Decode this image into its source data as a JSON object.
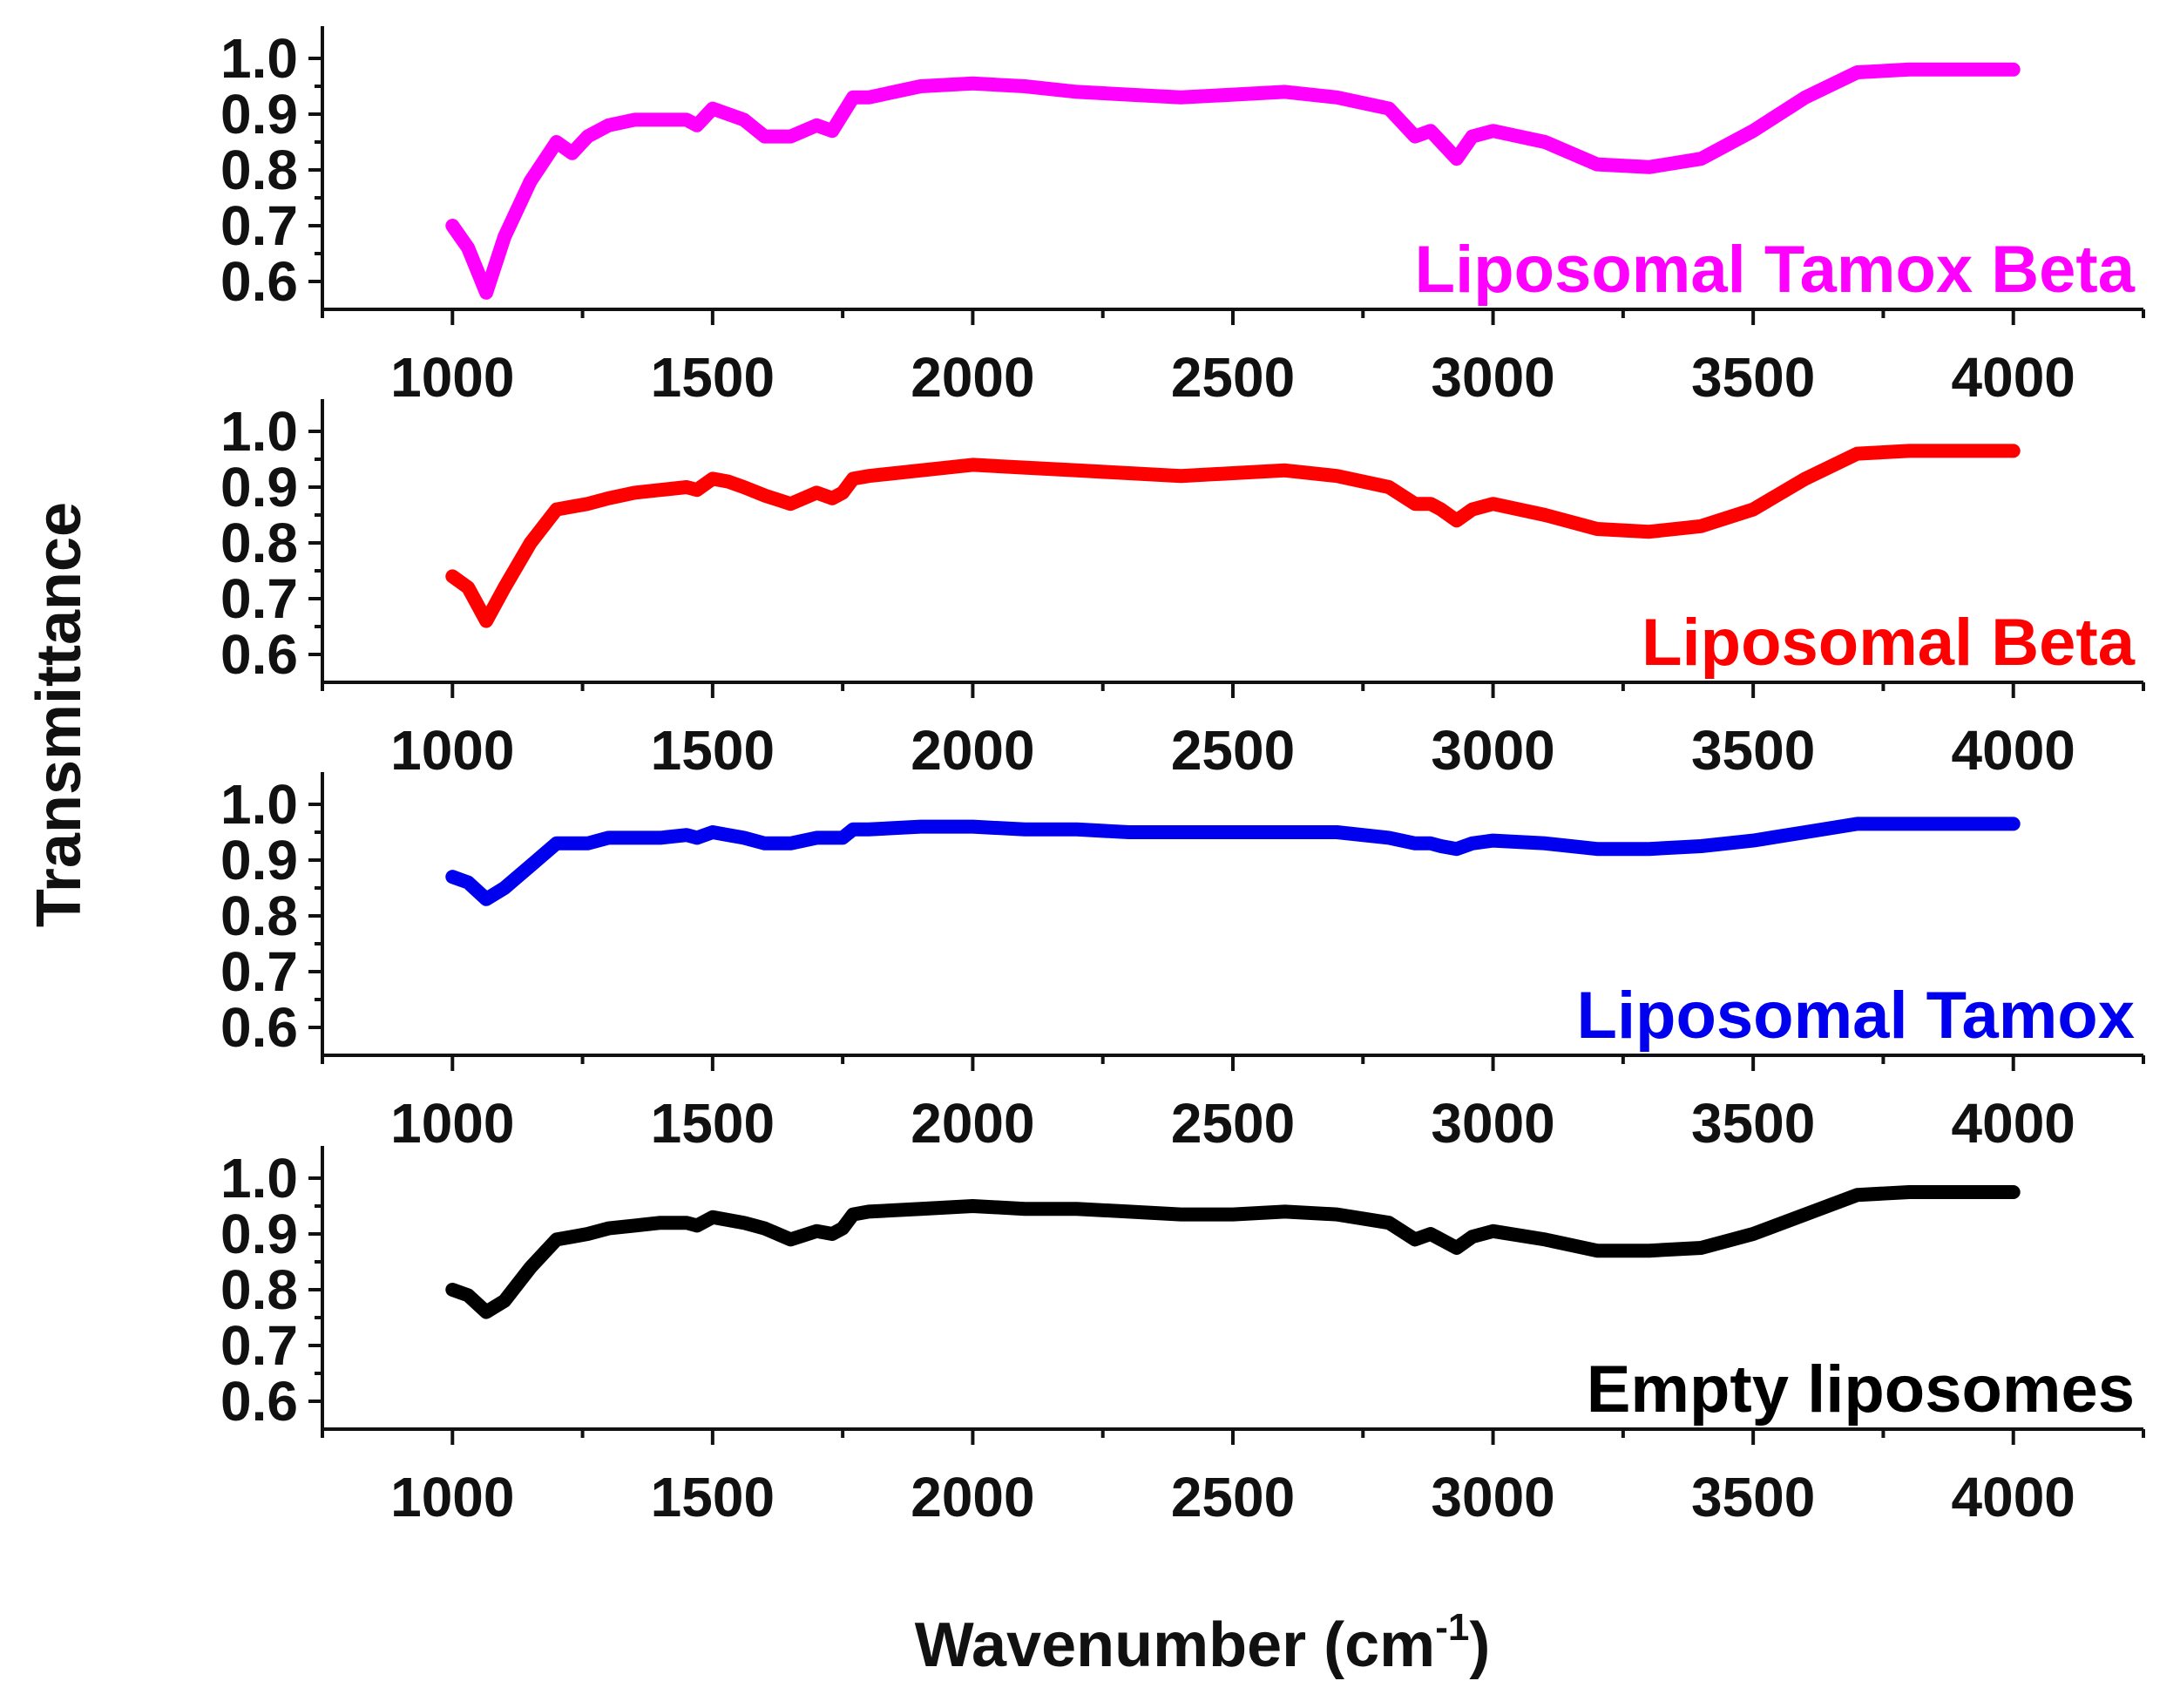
{
  "chart_data": {
    "type": "line",
    "layout": "stacked-panels",
    "xlabel_text": "Wavenumber (cm",
    "xlabel_sup": "-1",
    "xlabel_close": ")",
    "ylabel": "Transmittance",
    "xlim": [
      750,
      4250
    ],
    "ylim": [
      0.55,
      1.05
    ],
    "x_ticks": [
      1000,
      1500,
      2000,
      2500,
      3000,
      3500,
      4000
    ],
    "x_tick_labels": [
      "1000",
      "1500",
      "2000",
      "2500",
      "3000",
      "3500",
      "4000"
    ],
    "y_ticks": [
      0.6,
      0.7,
      0.8,
      0.9,
      1.0
    ],
    "y_tick_labels": [
      "0.6",
      "0.7",
      "0.8",
      "0.9",
      "1.0"
    ],
    "series": [
      {
        "name": "Liposomal Tamox Beta",
        "color": "#ff00ff",
        "x": [
          1000,
          1030,
          1065,
          1100,
          1150,
          1200,
          1230,
          1260,
          1300,
          1350,
          1400,
          1450,
          1470,
          1500,
          1530,
          1560,
          1600,
          1650,
          1700,
          1730,
          1750,
          1770,
          1800,
          1900,
          2000,
          2100,
          2200,
          2300,
          2400,
          2500,
          2600,
          2700,
          2800,
          2850,
          2880,
          2900,
          2930,
          2960,
          3000,
          3100,
          3200,
          3300,
          3400,
          3500,
          3600,
          3700,
          3800,
          3900,
          4000
        ],
        "y": [
          0.7,
          0.66,
          0.58,
          0.68,
          0.78,
          0.85,
          0.83,
          0.86,
          0.88,
          0.89,
          0.89,
          0.89,
          0.88,
          0.91,
          0.9,
          0.89,
          0.86,
          0.86,
          0.88,
          0.87,
          0.9,
          0.93,
          0.93,
          0.95,
          0.955,
          0.95,
          0.94,
          0.935,
          0.93,
          0.935,
          0.94,
          0.93,
          0.91,
          0.86,
          0.87,
          0.85,
          0.82,
          0.86,
          0.87,
          0.85,
          0.81,
          0.805,
          0.82,
          0.87,
          0.93,
          0.975,
          0.98,
          0.98,
          0.98
        ]
      },
      {
        "name": "Liposomal Beta",
        "color": "#ff0000",
        "x": [
          1000,
          1030,
          1065,
          1100,
          1150,
          1200,
          1230,
          1260,
          1300,
          1350,
          1400,
          1450,
          1470,
          1500,
          1530,
          1560,
          1600,
          1650,
          1700,
          1730,
          1750,
          1770,
          1800,
          1900,
          2000,
          2100,
          2200,
          2300,
          2400,
          2500,
          2600,
          2700,
          2800,
          2850,
          2880,
          2900,
          2930,
          2960,
          3000,
          3100,
          3200,
          3300,
          3400,
          3500,
          3600,
          3700,
          3800,
          3900,
          4000
        ],
        "y": [
          0.74,
          0.72,
          0.66,
          0.72,
          0.8,
          0.86,
          0.865,
          0.87,
          0.88,
          0.89,
          0.895,
          0.9,
          0.895,
          0.915,
          0.91,
          0.9,
          0.885,
          0.87,
          0.89,
          0.88,
          0.89,
          0.915,
          0.92,
          0.93,
          0.94,
          0.935,
          0.93,
          0.925,
          0.92,
          0.925,
          0.93,
          0.92,
          0.9,
          0.87,
          0.87,
          0.86,
          0.84,
          0.86,
          0.87,
          0.85,
          0.825,
          0.82,
          0.83,
          0.86,
          0.915,
          0.96,
          0.965,
          0.965,
          0.965
        ]
      },
      {
        "name": "Liposomal Tamox",
        "color": "#0000ee",
        "x": [
          1000,
          1030,
          1065,
          1100,
          1150,
          1200,
          1230,
          1260,
          1300,
          1350,
          1400,
          1450,
          1470,
          1500,
          1530,
          1560,
          1600,
          1650,
          1700,
          1730,
          1750,
          1770,
          1800,
          1900,
          2000,
          2100,
          2200,
          2300,
          2400,
          2500,
          2600,
          2700,
          2800,
          2850,
          2880,
          2900,
          2930,
          2960,
          3000,
          3100,
          3200,
          3300,
          3400,
          3500,
          3600,
          3700,
          3800,
          3900,
          4000
        ],
        "y": [
          0.87,
          0.86,
          0.83,
          0.85,
          0.89,
          0.93,
          0.93,
          0.93,
          0.94,
          0.94,
          0.94,
          0.945,
          0.94,
          0.95,
          0.945,
          0.94,
          0.93,
          0.93,
          0.94,
          0.94,
          0.94,
          0.955,
          0.955,
          0.96,
          0.96,
          0.955,
          0.955,
          0.95,
          0.95,
          0.95,
          0.95,
          0.95,
          0.94,
          0.93,
          0.93,
          0.925,
          0.92,
          0.93,
          0.935,
          0.93,
          0.92,
          0.92,
          0.925,
          0.935,
          0.95,
          0.965,
          0.965,
          0.965,
          0.965
        ]
      },
      {
        "name": "Empty liposomes",
        "color": "#000000",
        "x": [
          1000,
          1030,
          1065,
          1100,
          1150,
          1200,
          1230,
          1260,
          1300,
          1350,
          1400,
          1450,
          1470,
          1500,
          1530,
          1560,
          1600,
          1650,
          1700,
          1730,
          1750,
          1770,
          1800,
          1900,
          2000,
          2100,
          2200,
          2300,
          2400,
          2500,
          2600,
          2700,
          2800,
          2850,
          2880,
          2900,
          2930,
          2960,
          3000,
          3100,
          3200,
          3300,
          3400,
          3500,
          3600,
          3700,
          3800,
          3900,
          4000
        ],
        "y": [
          0.8,
          0.79,
          0.76,
          0.78,
          0.84,
          0.89,
          0.895,
          0.9,
          0.91,
          0.915,
          0.92,
          0.92,
          0.915,
          0.93,
          0.925,
          0.92,
          0.91,
          0.89,
          0.905,
          0.9,
          0.91,
          0.935,
          0.94,
          0.945,
          0.95,
          0.945,
          0.945,
          0.94,
          0.935,
          0.935,
          0.94,
          0.935,
          0.92,
          0.89,
          0.9,
          0.89,
          0.875,
          0.895,
          0.905,
          0.89,
          0.87,
          0.87,
          0.875,
          0.9,
          0.935,
          0.97,
          0.975,
          0.975,
          0.975
        ]
      }
    ]
  }
}
